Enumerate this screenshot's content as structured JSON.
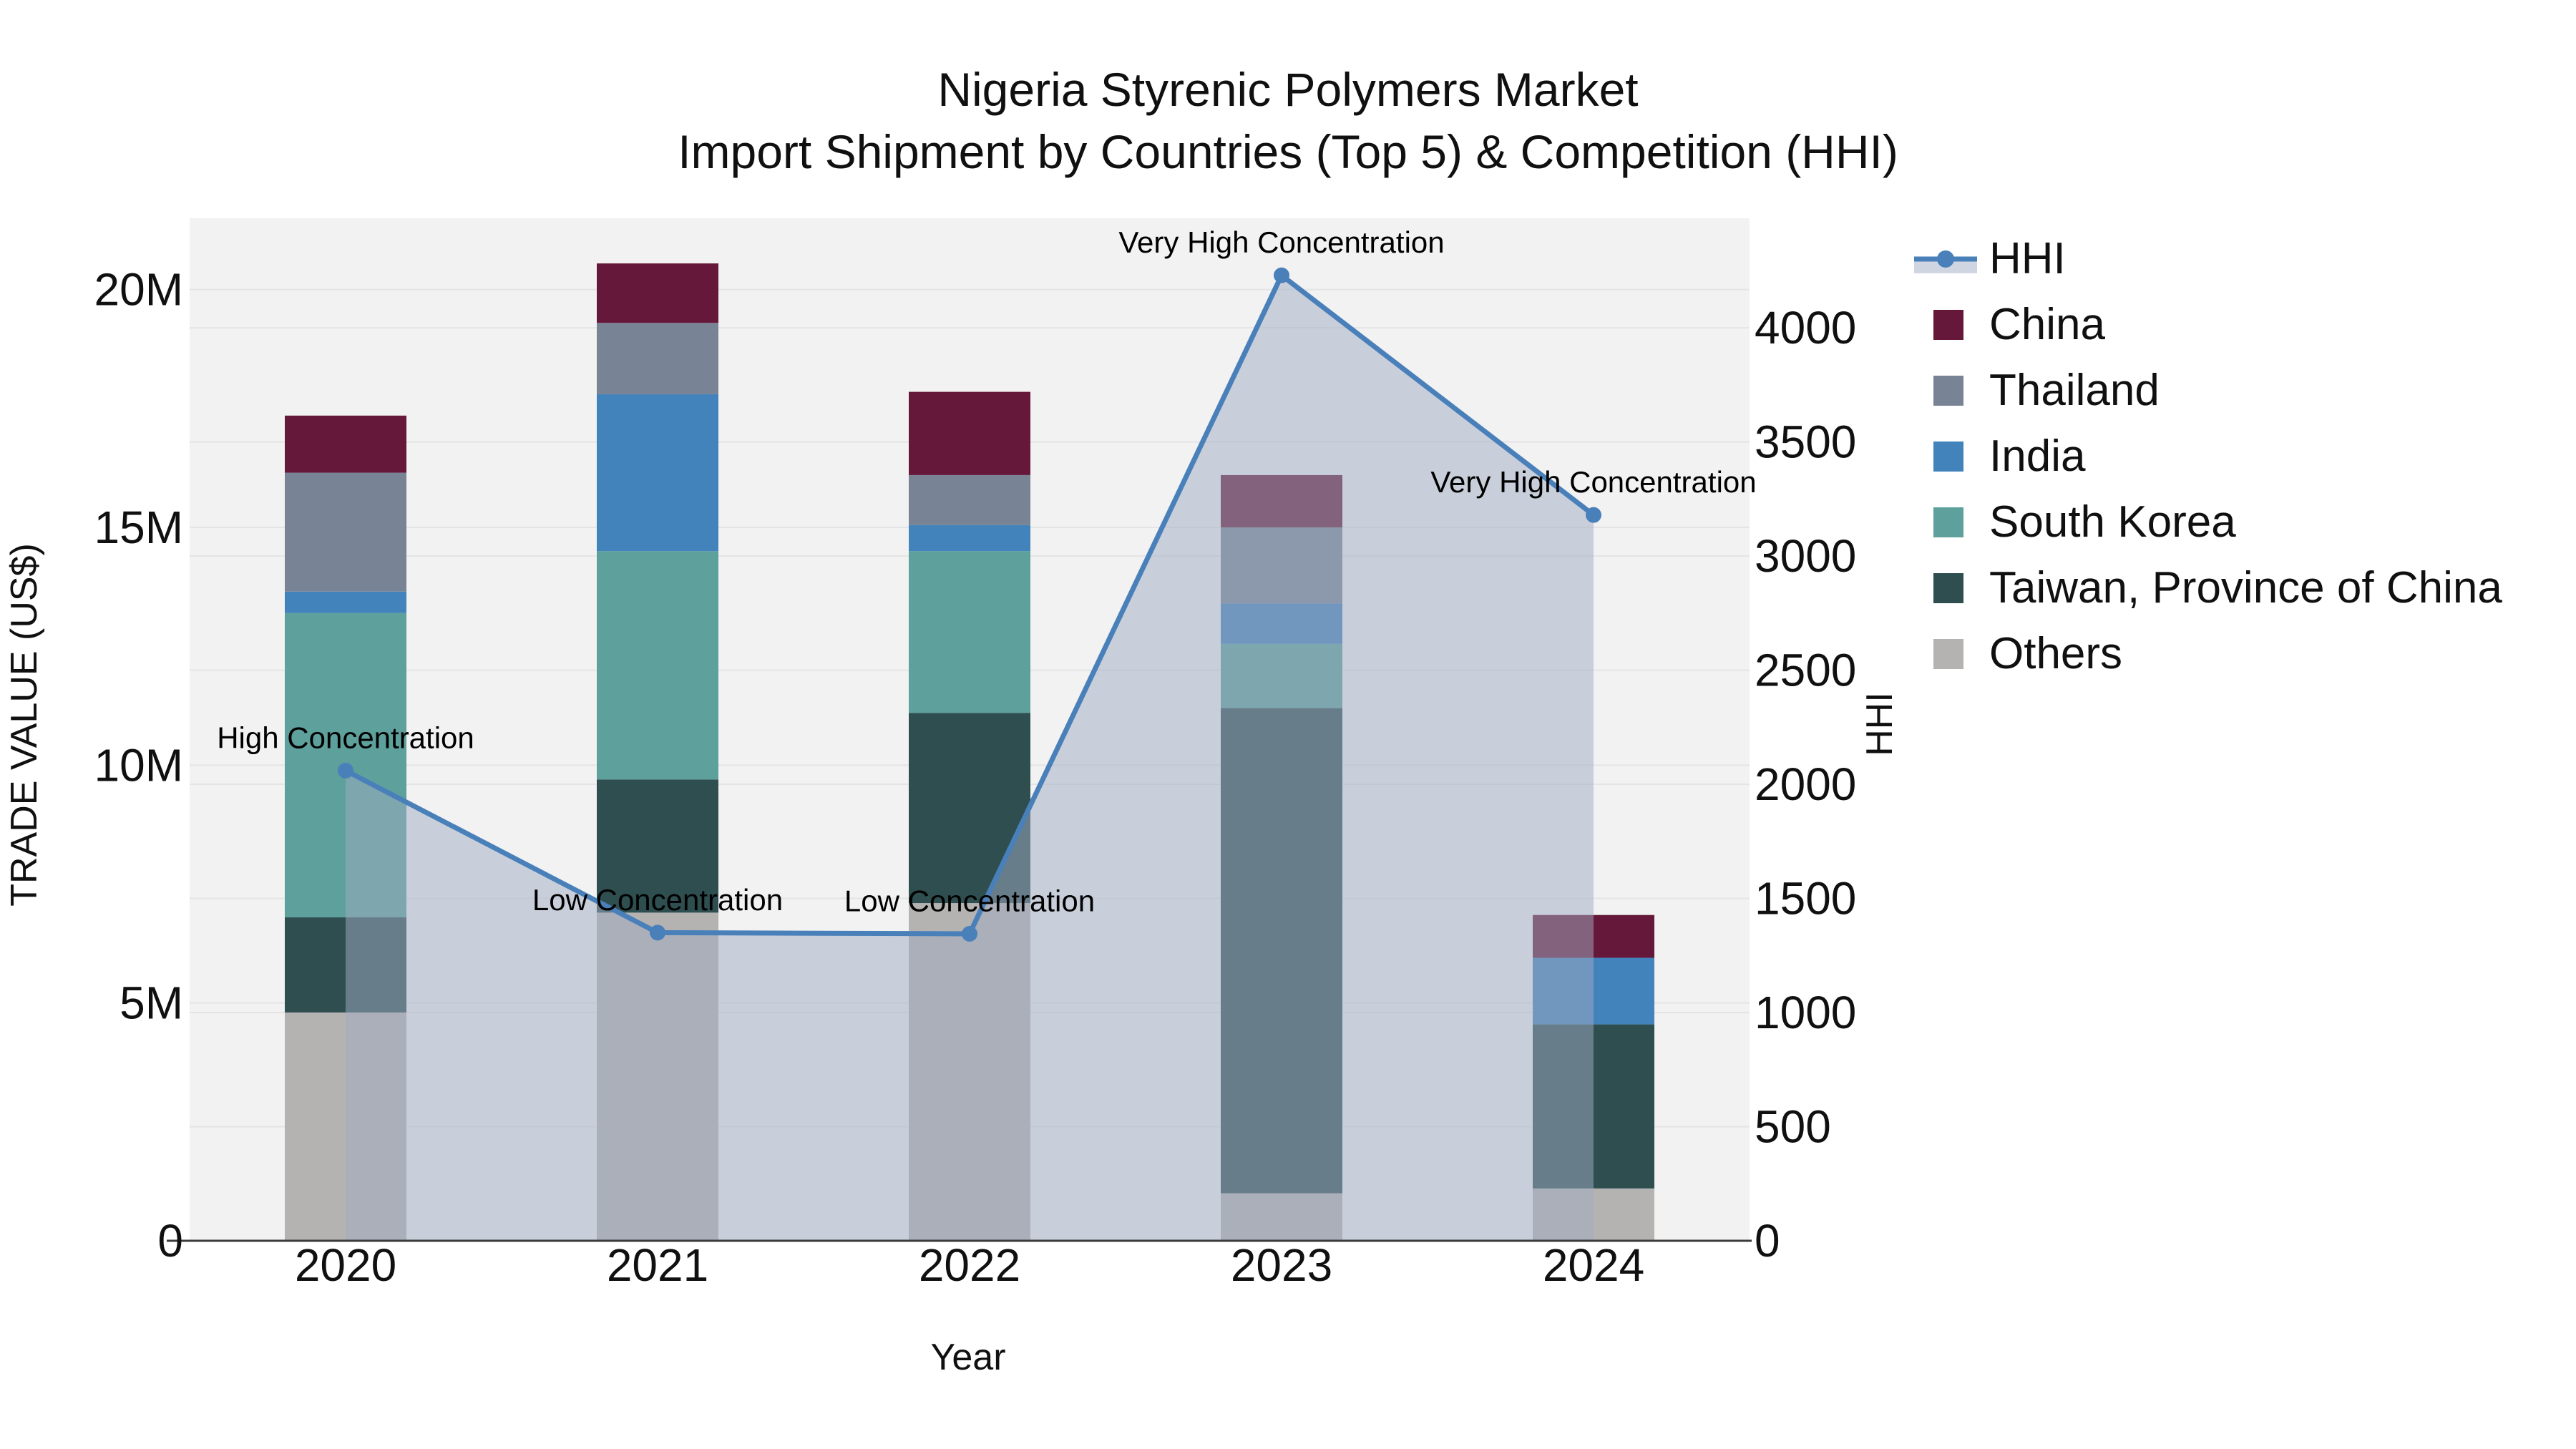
{
  "title": {
    "line1": "Nigeria Styrenic Polymers Market",
    "line2": "Import Shipment by Countries (Top 5) & Competition (HHI)"
  },
  "axes": {
    "x": {
      "label": "Year",
      "tick_labels": [
        "2020",
        "2021",
        "2022",
        "2023",
        "2024"
      ]
    },
    "y_left": {
      "label": "TRADE VALUE (US$)",
      "tick_labels": [
        "0",
        "5M",
        "10M",
        "15M",
        "20M"
      ],
      "tick_values": [
        0,
        5,
        10,
        15,
        20
      ],
      "max": 21.5
    },
    "y_right": {
      "label": "HHI",
      "tick_labels": [
        "0",
        "500",
        "1000",
        "1500",
        "2000",
        "2500",
        "3000",
        "3500",
        "4000"
      ],
      "tick_values": [
        0,
        500,
        1000,
        1500,
        2000,
        2500,
        3000,
        3500,
        4000
      ],
      "max": 4480
    }
  },
  "legend": {
    "items": [
      {
        "label": "HHI",
        "type": "line",
        "color": "#4a80ba",
        "fill_color": "#d0d6e1"
      },
      {
        "label": "China",
        "type": "box",
        "color": "#651839"
      },
      {
        "label": "Thailand",
        "type": "box",
        "color": "#788495"
      },
      {
        "label": "India",
        "type": "box",
        "color": "#4383bb"
      },
      {
        "label": "South Korea",
        "type": "box",
        "color": "#5da09c"
      },
      {
        "label": "Taiwan, Province of China",
        "type": "box",
        "color": "#2e4e50"
      },
      {
        "label": "Others",
        "type": "box",
        "color": "#b5b3b1"
      }
    ]
  },
  "chart_data": {
    "type": "combo_stacked_bar_line",
    "title": "Nigeria Styrenic Polymers Market — Import Shipment by Countries (Top 5) & Competition (HHI)",
    "categories": [
      "2020",
      "2021",
      "2022",
      "2023",
      "2024"
    ],
    "bar_value_unit": "million US$",
    "stack_order_bottom_to_top": [
      "Others",
      "Taiwan, Province of China",
      "South Korea",
      "India",
      "Thailand",
      "China"
    ],
    "series": [
      {
        "name": "Others",
        "color": "#b5b3b1",
        "values": [
          4.8,
          6.9,
          7.1,
          1.0,
          1.1
        ]
      },
      {
        "name": "Taiwan, Province of China",
        "color": "#2e4e50",
        "values": [
          2.0,
          2.8,
          4.0,
          10.2,
          3.45
        ]
      },
      {
        "name": "South Korea",
        "color": "#5da09c",
        "values": [
          6.4,
          4.8,
          3.4,
          1.35,
          0
        ]
      },
      {
        "name": "India",
        "color": "#4383bb",
        "values": [
          0.45,
          3.3,
          0.55,
          0.85,
          1.4
        ]
      },
      {
        "name": "Thailand",
        "color": "#788495",
        "values": [
          2.5,
          1.5,
          1.05,
          1.6,
          0
        ]
      },
      {
        "name": "China",
        "color": "#651839",
        "values": [
          1.2,
          1.25,
          1.75,
          1.1,
          0.9
        ]
      }
    ],
    "bar_totals_millions": [
      17.35,
      20.55,
      17.85,
      16.1,
      6.85
    ],
    "line_series": {
      "name": "HHI",
      "axis": "right",
      "color": "#4a80ba",
      "area_fill": "rgba(160,172,194,0.5)",
      "values": [
        2060,
        1350,
        1345,
        4230,
        3180
      ]
    },
    "annotations": [
      "High Concentration",
      "Low Concentration",
      "Low Concentration",
      "Very High Concentration",
      "Very High Concentration"
    ],
    "xlabel": "Year",
    "ylabel_left": "TRADE VALUE (US$)",
    "ylabel_right": "HHI",
    "ylim_left_millions": [
      0,
      21.5
    ],
    "ylim_right": [
      0,
      4480
    ],
    "grid": true,
    "legend_position": "right",
    "plot_bg": "#f2f2f2",
    "grid_color": "#e4e4e6",
    "axis_line_color": "#3b3b3b"
  }
}
